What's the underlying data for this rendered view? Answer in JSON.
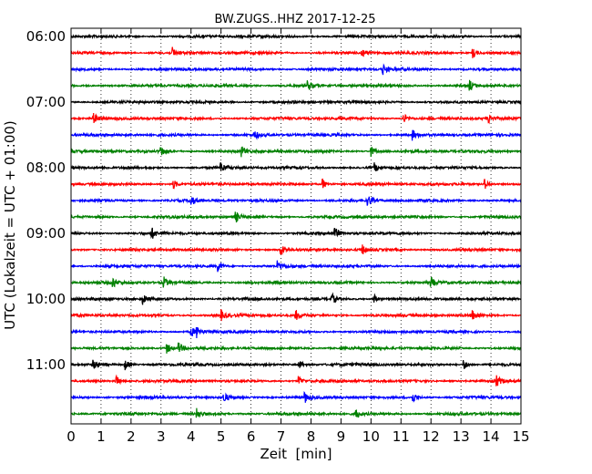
{
  "chart_data": {
    "type": "line",
    "title": "BW.ZUGS..HHZ 2017-12-25",
    "xlabel": "Zeit  [min]",
    "ylabel": "UTC (Lokalzeit = UTC + 01:00)",
    "xlim": [
      0,
      15
    ],
    "x_ticks": [
      "0",
      "1",
      "2",
      "3",
      "4",
      "5",
      "6",
      "7",
      "8",
      "9",
      "10",
      "11",
      "12",
      "13",
      "14",
      "15"
    ],
    "y_tick_labels": [
      "06:00",
      "07:00",
      "08:00",
      "09:00",
      "10:00",
      "11:00"
    ],
    "grid": "vertical-dotted",
    "trace_count": 24,
    "trace_colors": [
      "#000000",
      "#ff0000",
      "#0000ff",
      "#008000"
    ],
    "events": [
      [],
      [
        3.4,
        9.7,
        13.4
      ],
      [
        10.4
      ],
      [
        7.9,
        13.3
      ],
      [],
      [
        0.75,
        11.1,
        13.9
      ],
      [
        6.1,
        11.4
      ],
      [
        3.0,
        5.7,
        10.0
      ],
      [
        5.0,
        10.1
      ],
      [
        3.4,
        8.4,
        13.8
      ],
      [
        4.0,
        9.9
      ],
      [
        5.5
      ],
      [
        2.7,
        8.8
      ],
      [
        7.0,
        9.7
      ],
      [
        4.9,
        6.9
      ],
      [
        1.4,
        3.1,
        12.0
      ],
      [
        2.4,
        8.7,
        10.1
      ],
      [
        5.0,
        7.5,
        13.4
      ],
      [
        4.0,
        4.2
      ],
      [
        3.2,
        3.6
      ],
      [
        0.75,
        1.8,
        7.6,
        13.1
      ],
      [
        1.5,
        7.6,
        14.2
      ],
      [
        5.1,
        7.8,
        11.4
      ],
      [
        4.2,
        9.5
      ]
    ]
  }
}
